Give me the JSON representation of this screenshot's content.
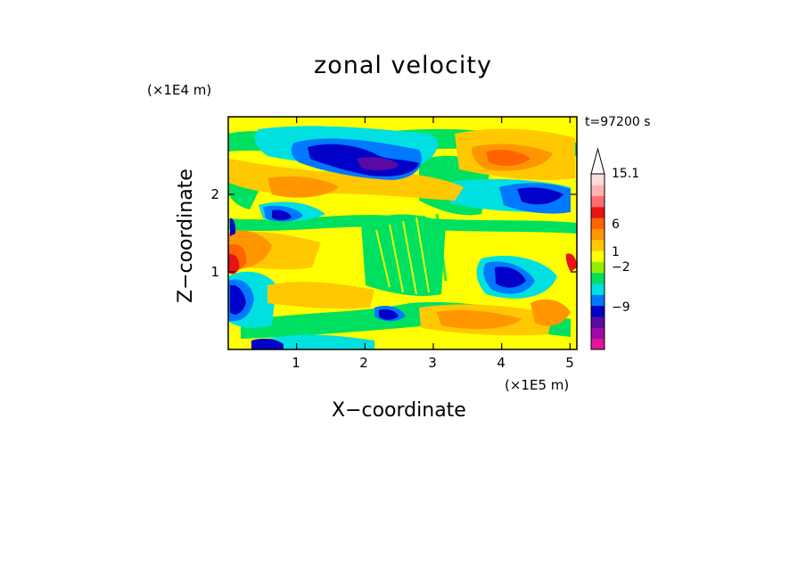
{
  "chart_data": {
    "type": "heatmap",
    "title": "zonal velocity",
    "xlabel": "X−coordinate",
    "ylabel": "Z−coordinate",
    "x_unit": "(×1E5 m)",
    "y_unit": "(×1E4 m)",
    "time_label": "t=97200 s",
    "xlim": [
      0,
      5.1
    ],
    "ylim": [
      0,
      3.0
    ],
    "x_ticks": [
      "1",
      "2",
      "3",
      "4",
      "5"
    ],
    "x_tick_values": [
      1,
      2,
      3,
      4,
      5
    ],
    "y_ticks": [
      "1",
      "2"
    ],
    "y_tick_values": [
      1,
      2
    ],
    "grid": false,
    "colorbar": {
      "labels": [
        "15.1",
        "6",
        "1",
        "−2",
        "−9"
      ],
      "colors": [
        "#e0169e",
        "#a00aa8",
        "#5a0aa0",
        "#0000c8",
        "#0078ff",
        "#00e0e0",
        "#00e060",
        "#90f000",
        "#ffff00",
        "#ffc800",
        "#ff9600",
        "#ff6400",
        "#e61414",
        "#ff6e6e",
        "#ffb4b4",
        "#ffdcdc"
      ]
    },
    "features": [
      {
        "x": 1.6,
        "z": 2.55,
        "value": -9
      },
      {
        "x": 2.3,
        "z": 2.45,
        "value": -12
      },
      {
        "x": 4.5,
        "z": 2.1,
        "value": -9
      },
      {
        "x": 0.15,
        "z": 0.55,
        "value": -7
      },
      {
        "x": 0.1,
        "z": 1.1,
        "value": 9
      },
      {
        "x": 4.1,
        "z": 2.45,
        "value": 5
      },
      {
        "x": 4.0,
        "z": 0.85,
        "value": -6
      },
      {
        "x": 2.4,
        "z": 0.45,
        "value": -8
      }
    ]
  }
}
